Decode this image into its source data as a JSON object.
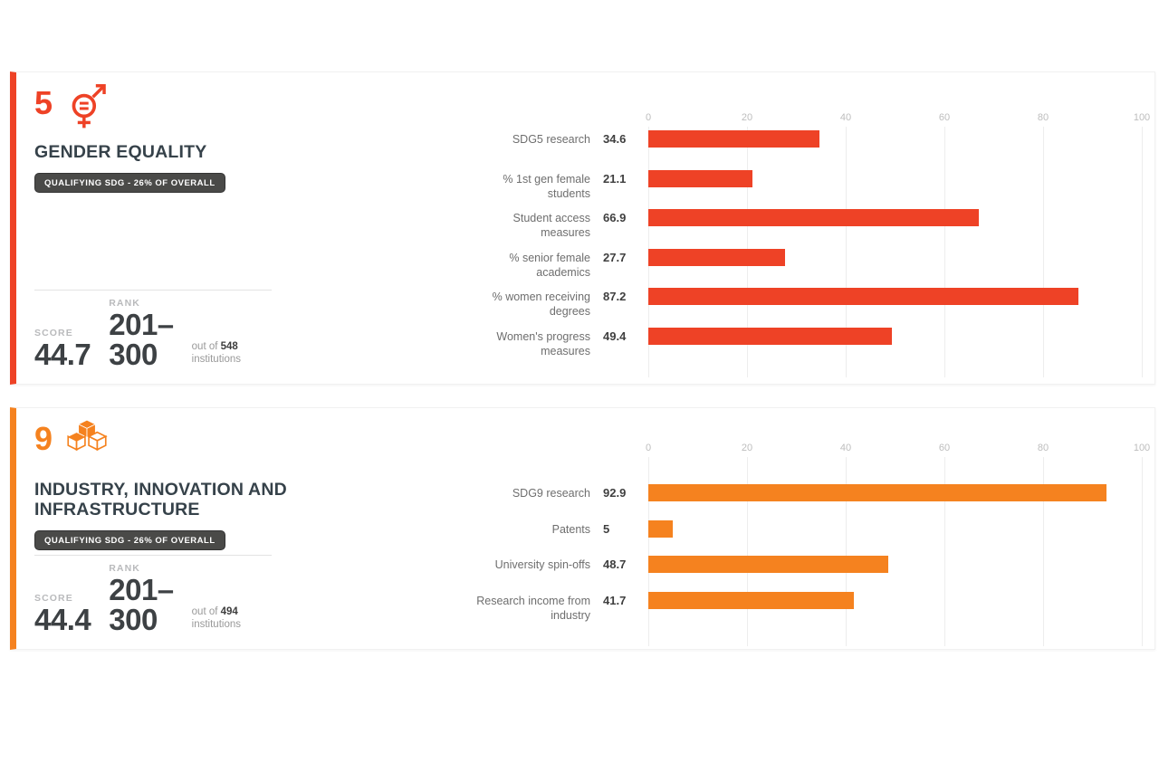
{
  "panels": [
    {
      "sdg_number": "5",
      "title": "GENDER EQUALITY",
      "badge": "QUALIFYING SDG - 26% OF OVERALL",
      "accent_color": "#ee4226",
      "icon": "sdg5-gender-equality-icon",
      "score_label": "SCORE",
      "score_value": "44.7",
      "rank_label": "RANK",
      "rank_value_line1": "201–",
      "rank_value_line2": "300",
      "out_of_prefix": "out of",
      "out_of_total": "548",
      "out_of_suffix": "institutions"
    },
    {
      "sdg_number": "9",
      "title": "INDUSTRY, INNOVATION AND INFRASTRUCTURE",
      "badge": "QUALIFYING SDG - 26% OF OVERALL",
      "accent_color": "#f5821f",
      "icon": "sdg9-industry-innovation-icon",
      "score_label": "SCORE",
      "score_value": "44.4",
      "rank_label": "RANK",
      "rank_value_line1": "201–",
      "rank_value_line2": "300",
      "out_of_prefix": "out of",
      "out_of_total": "494",
      "out_of_suffix": "institutions"
    }
  ],
  "chart_data": [
    {
      "type": "bar",
      "orientation": "horizontal",
      "title": "SDG 5 Gender Equality metrics",
      "bar_color": "#ee4226",
      "xlim": [
        0,
        100
      ],
      "ticks": [
        0,
        20,
        40,
        60,
        80,
        100
      ],
      "grid": true,
      "legend": false,
      "categories": [
        "SDG5 research",
        "% 1st gen female\nstudents",
        "Student access\nmeasures",
        "% senior female\nacademics",
        "% women receiving\ndegrees",
        "Women's progress\nmeasures"
      ],
      "values": [
        34.6,
        21.1,
        66.9,
        27.7,
        87.2,
        49.4
      ]
    },
    {
      "type": "bar",
      "orientation": "horizontal",
      "title": "SDG 9 Industry, Innovation and Infrastructure metrics",
      "bar_color": "#f5821f",
      "xlim": [
        0,
        100
      ],
      "ticks": [
        0,
        20,
        40,
        60,
        80,
        100
      ],
      "grid": true,
      "legend": false,
      "categories": [
        "SDG9 research",
        "Patents",
        "University spin-offs",
        "Research income from\nindustry"
      ],
      "values": [
        92.9,
        5,
        48.7,
        41.7
      ]
    }
  ]
}
